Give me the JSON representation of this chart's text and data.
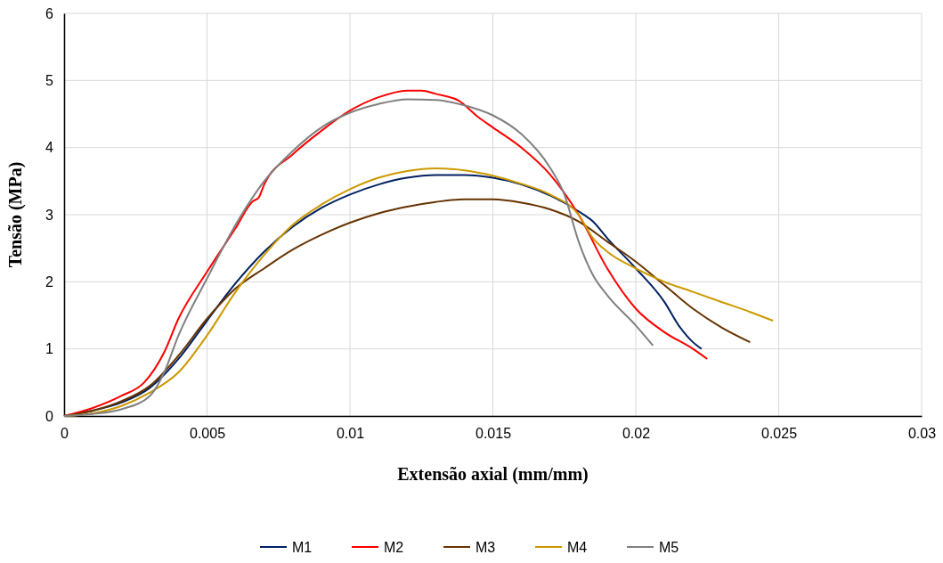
{
  "chart_data": {
    "type": "line",
    "xlabel": "Extensão axial (mm/mm)",
    "ylabel": "Tensão (MPa)",
    "xlim": [
      0,
      0.03
    ],
    "xticks": [
      0,
      0.005,
      0.01,
      0.015,
      0.02,
      0.025,
      0.03
    ],
    "ylim": [
      0,
      6
    ],
    "yticks": [
      0,
      1,
      2,
      3,
      4,
      5,
      6
    ],
    "grid": true,
    "legend": "bottom",
    "marker": "none",
    "line_style": "solid",
    "series": [
      {
        "name": "M1",
        "color": "#002060",
        "x": [
          0,
          0.001,
          0.002,
          0.003,
          0.004,
          0.005,
          0.006,
          0.007,
          0.008,
          0.009,
          0.01,
          0.011,
          0.012,
          0.013,
          0.014,
          0.015,
          0.016,
          0.018,
          0.0185,
          0.019,
          0.02,
          0.021,
          0.0215,
          0.022,
          0.0223
        ],
        "values": [
          0,
          0.08,
          0.2,
          0.42,
          0.85,
          1.42,
          1.98,
          2.45,
          2.82,
          3.1,
          3.3,
          3.45,
          3.55,
          3.59,
          3.59,
          3.55,
          3.45,
          3.05,
          2.9,
          2.65,
          2.2,
          1.7,
          1.35,
          1.1,
          1.0
        ]
      },
      {
        "name": "M2",
        "color": "#ff0000",
        "x": [
          0,
          0.001,
          0.002,
          0.0028,
          0.0035,
          0.004,
          0.005,
          0.006,
          0.0066,
          0.0068,
          0.007,
          0.008,
          0.009,
          0.01,
          0.011,
          0.012,
          0.0125,
          0.013,
          0.0138,
          0.0145,
          0.015,
          0.016,
          0.017,
          0.018,
          0.019,
          0.02,
          0.021,
          0.022,
          0.0225
        ],
        "values": [
          0,
          0.12,
          0.3,
          0.5,
          0.95,
          1.45,
          2.15,
          2.8,
          3.2,
          3.25,
          3.45,
          3.9,
          4.25,
          4.55,
          4.75,
          4.85,
          4.85,
          4.8,
          4.7,
          4.45,
          4.3,
          4.0,
          3.6,
          3.0,
          2.2,
          1.6,
          1.25,
          1.0,
          0.85
        ]
      },
      {
        "name": "M3",
        "color": "#663300",
        "x": [
          0,
          0.001,
          0.002,
          0.003,
          0.004,
          0.005,
          0.006,
          0.007,
          0.008,
          0.009,
          0.01,
          0.011,
          0.012,
          0.013,
          0.014,
          0.015,
          0.016,
          0.017,
          0.018,
          0.019,
          0.02,
          0.021,
          0.022,
          0.023,
          0.024
        ],
        "values": [
          0,
          0.08,
          0.22,
          0.45,
          0.9,
          1.45,
          1.9,
          2.2,
          2.48,
          2.7,
          2.88,
          3.02,
          3.12,
          3.19,
          3.23,
          3.23,
          3.18,
          3.08,
          2.9,
          2.6,
          2.3,
          1.95,
          1.6,
          1.32,
          1.1
        ]
      },
      {
        "name": "M4",
        "color": "#cc9900",
        "x": [
          0,
          0.001,
          0.002,
          0.003,
          0.004,
          0.005,
          0.006,
          0.007,
          0.008,
          0.009,
          0.01,
          0.011,
          0.012,
          0.013,
          0.014,
          0.015,
          0.016,
          0.017,
          0.018,
          0.0185,
          0.019,
          0.02,
          0.021,
          0.022,
          0.023,
          0.024,
          0.0248
        ],
        "values": [
          0,
          0.04,
          0.15,
          0.35,
          0.65,
          1.2,
          1.85,
          2.4,
          2.85,
          3.15,
          3.38,
          3.55,
          3.65,
          3.69,
          3.66,
          3.58,
          3.46,
          3.3,
          3.0,
          2.65,
          2.45,
          2.2,
          2.0,
          1.85,
          1.7,
          1.55,
          1.42
        ]
      },
      {
        "name": "M5",
        "color": "#808080",
        "x": [
          0,
          0.001,
          0.002,
          0.003,
          0.0035,
          0.004,
          0.005,
          0.006,
          0.007,
          0.008,
          0.009,
          0.01,
          0.011,
          0.012,
          0.013,
          0.014,
          0.015,
          0.016,
          0.017,
          0.0175,
          0.018,
          0.0185,
          0.019,
          0.02,
          0.0206
        ],
        "values": [
          0,
          0.03,
          0.1,
          0.3,
          0.65,
          1.2,
          2.05,
          2.85,
          3.5,
          3.95,
          4.3,
          4.52,
          4.65,
          4.72,
          4.71,
          4.63,
          4.48,
          4.2,
          3.7,
          3.3,
          2.6,
          2.1,
          1.8,
          1.35,
          1.05
        ]
      }
    ]
  }
}
